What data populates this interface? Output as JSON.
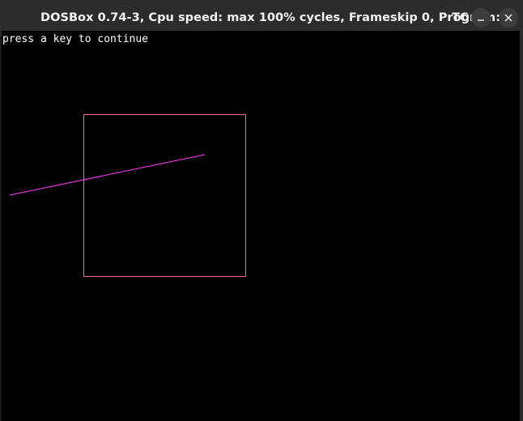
{
  "window": {
    "title": "DOSBox 0.74-3, Cpu speed: max 100% cycles, Frameskip  0, Program:",
    "title_truncated_tail": "TC",
    "minimize_icon": "minimize-icon",
    "close_icon": "close-icon"
  },
  "screen": {
    "prompt_text": "press a key to continue"
  },
  "colors": {
    "rectangle": "#ff6a9a",
    "line": "#ff3cff",
    "background": "#000000",
    "text": "#ffffff"
  }
}
